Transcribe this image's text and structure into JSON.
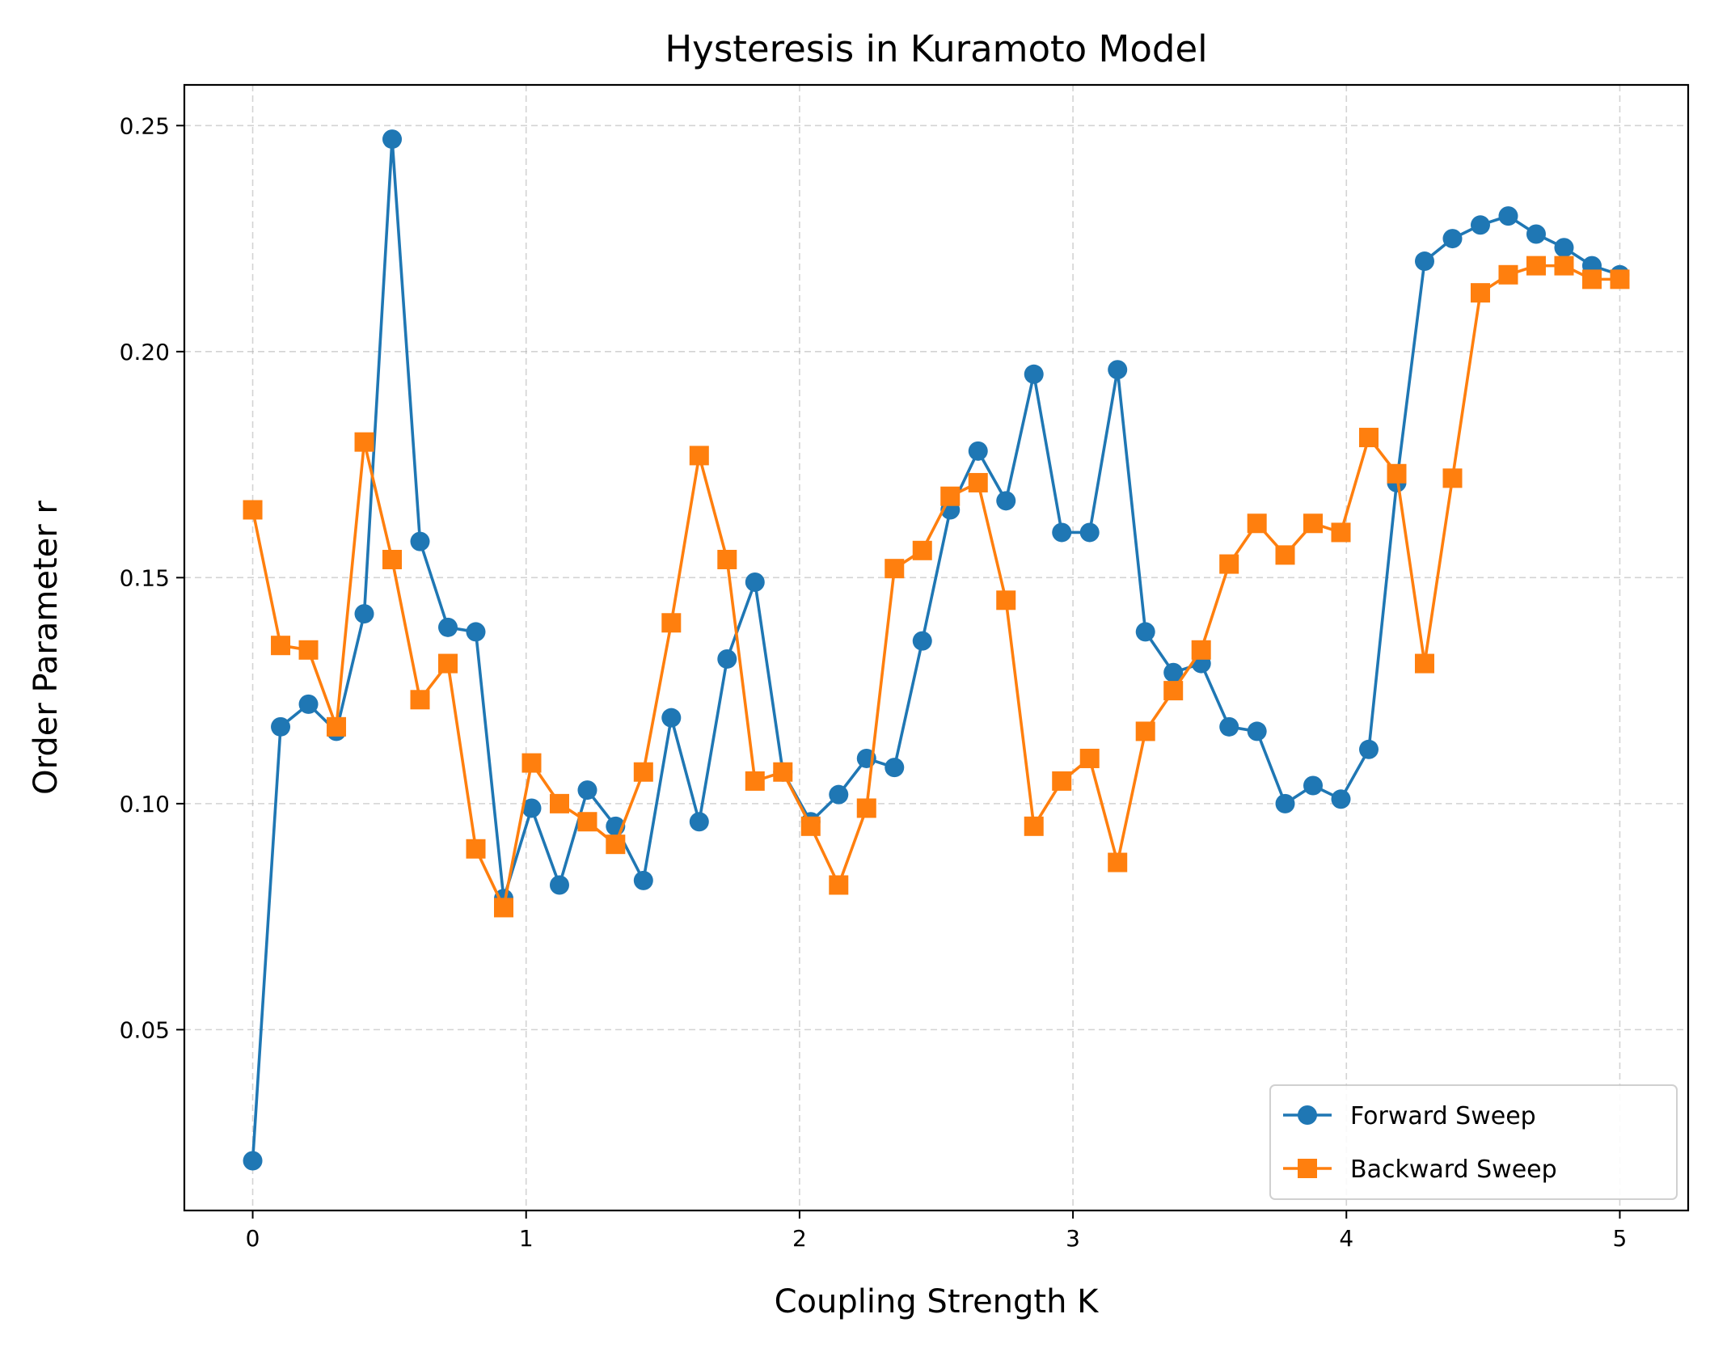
{
  "chart_data": {
    "type": "line",
    "title": "Hysteresis in Kuramoto Model",
    "xlabel": "Coupling Strength K",
    "ylabel": "Order Parameter r",
    "xlim": [
      -0.25,
      5.25
    ],
    "ylim": [
      0.01,
      0.259
    ],
    "xticks": [
      0,
      1,
      2,
      3,
      4,
      5
    ],
    "xtick_labels": [
      "0",
      "1",
      "2",
      "3",
      "4",
      "5"
    ],
    "yticks": [
      0.05,
      0.1,
      0.15,
      0.2,
      0.25
    ],
    "ytick_labels": [
      "0.05",
      "0.10",
      "0.15",
      "0.20",
      "0.25"
    ],
    "grid": true,
    "legend_position": "lower-right",
    "x": [
      0.0,
      0.102,
      0.204,
      0.306,
      0.408,
      0.51,
      0.612,
      0.714,
      0.816,
      0.918,
      1.02,
      1.122,
      1.224,
      1.327,
      1.429,
      1.531,
      1.633,
      1.735,
      1.837,
      1.939,
      2.041,
      2.143,
      2.245,
      2.347,
      2.449,
      2.551,
      2.653,
      2.755,
      2.857,
      2.959,
      3.061,
      3.163,
      3.265,
      3.367,
      3.469,
      3.571,
      3.673,
      3.776,
      3.878,
      3.98,
      4.082,
      4.184,
      4.286,
      4.388,
      4.49,
      4.592,
      4.694,
      4.796,
      4.898,
      5.0
    ],
    "series": [
      {
        "name": "Forward Sweep",
        "color": "#1f77b4",
        "marker": "circle",
        "values": [
          0.021,
          0.117,
          0.122,
          0.116,
          0.142,
          0.247,
          0.158,
          0.139,
          0.138,
          0.079,
          0.099,
          0.082,
          0.103,
          0.095,
          0.083,
          0.119,
          0.096,
          0.132,
          0.149,
          0.107,
          0.096,
          0.102,
          0.11,
          0.108,
          0.136,
          0.165,
          0.178,
          0.167,
          0.195,
          0.16,
          0.16,
          0.196,
          0.138,
          0.129,
          0.131,
          0.117,
          0.116,
          0.1,
          0.104,
          0.101,
          0.112,
          0.171,
          0.22,
          0.225,
          0.228,
          0.23,
          0.226,
          0.223,
          0.219,
          0.217
        ]
      },
      {
        "name": "Backward Sweep",
        "color": "#ff7f0e",
        "marker": "square",
        "values": [
          0.165,
          0.135,
          0.134,
          0.117,
          0.18,
          0.154,
          0.123,
          0.131,
          0.09,
          0.077,
          0.109,
          0.1,
          0.096,
          0.091,
          0.107,
          0.14,
          0.177,
          0.154,
          0.105,
          0.107,
          0.095,
          0.082,
          0.099,
          0.152,
          0.156,
          0.168,
          0.171,
          0.145,
          0.095,
          0.105,
          0.11,
          0.087,
          0.116,
          0.125,
          0.134,
          0.153,
          0.162,
          0.155,
          0.162,
          0.16,
          0.181,
          0.173,
          0.131,
          0.172,
          0.213,
          0.217,
          0.219,
          0.219,
          0.216,
          0.216
        ]
      }
    ]
  }
}
